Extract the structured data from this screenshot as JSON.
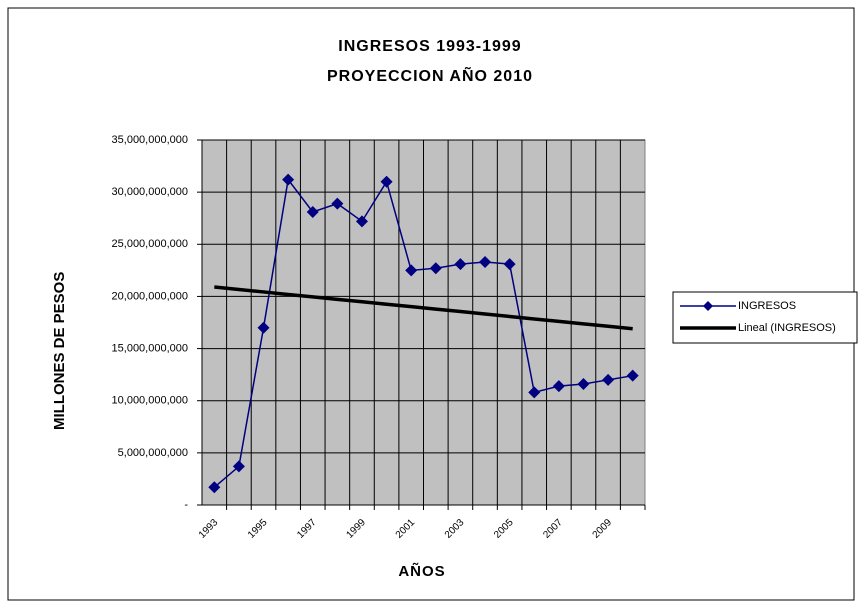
{
  "chart_data": {
    "type": "line",
    "title": [
      "INGRESOS 1993-1999",
      "PROYECCION AÑO 2010"
    ],
    "xlabel": "AÑOS",
    "ylabel": "MILLONES DE PESOS",
    "categories": [
      "1993",
      null,
      "1995",
      null,
      "1997",
      null,
      "1999",
      null,
      "2001",
      null,
      "2003",
      null,
      "2005",
      null,
      "2007",
      null,
      "2009",
      null
    ],
    "series": [
      {
        "name": "INGRESOS",
        "color": "#000080",
        "marker": "diamond",
        "values": [
          1700000000,
          3700000000,
          17000000000,
          31200000000,
          28100000000,
          28900000000,
          27200000000,
          31000000000,
          22500000000,
          22700000000,
          23100000000,
          23300000000,
          23100000000,
          10800000000,
          11400000000,
          11600000000,
          12000000000,
          12400000000
        ]
      },
      {
        "name": "Lineal (INGRESOS)",
        "color": "#000000",
        "values": [
          20900000000,
          20660000000,
          20430000000,
          20190000000,
          19960000000,
          19720000000,
          19490000000,
          19250000000,
          19020000000,
          18780000000,
          18550000000,
          18310000000,
          18080000000,
          17840000000,
          17610000000,
          17370000000,
          17140000000,
          16900000000
        ]
      }
    ],
    "ylim": [
      0,
      35000000000
    ],
    "yticks": [
      {
        "value": 0,
        "label": "-"
      },
      {
        "value": 5000000000,
        "label": "5,000,000,000"
      },
      {
        "value": 10000000000,
        "label": "10,000,000,000"
      },
      {
        "value": 15000000000,
        "label": "15,000,000,000"
      },
      {
        "value": 20000000000,
        "label": "20,000,000,000"
      },
      {
        "value": 25000000000,
        "label": "25,000,000,000"
      },
      {
        "value": 30000000000,
        "label": "30,000,000,000"
      },
      {
        "value": 35000000000,
        "label": "35,000,000,000"
      }
    ],
    "grid": true,
    "legend": "right"
  }
}
